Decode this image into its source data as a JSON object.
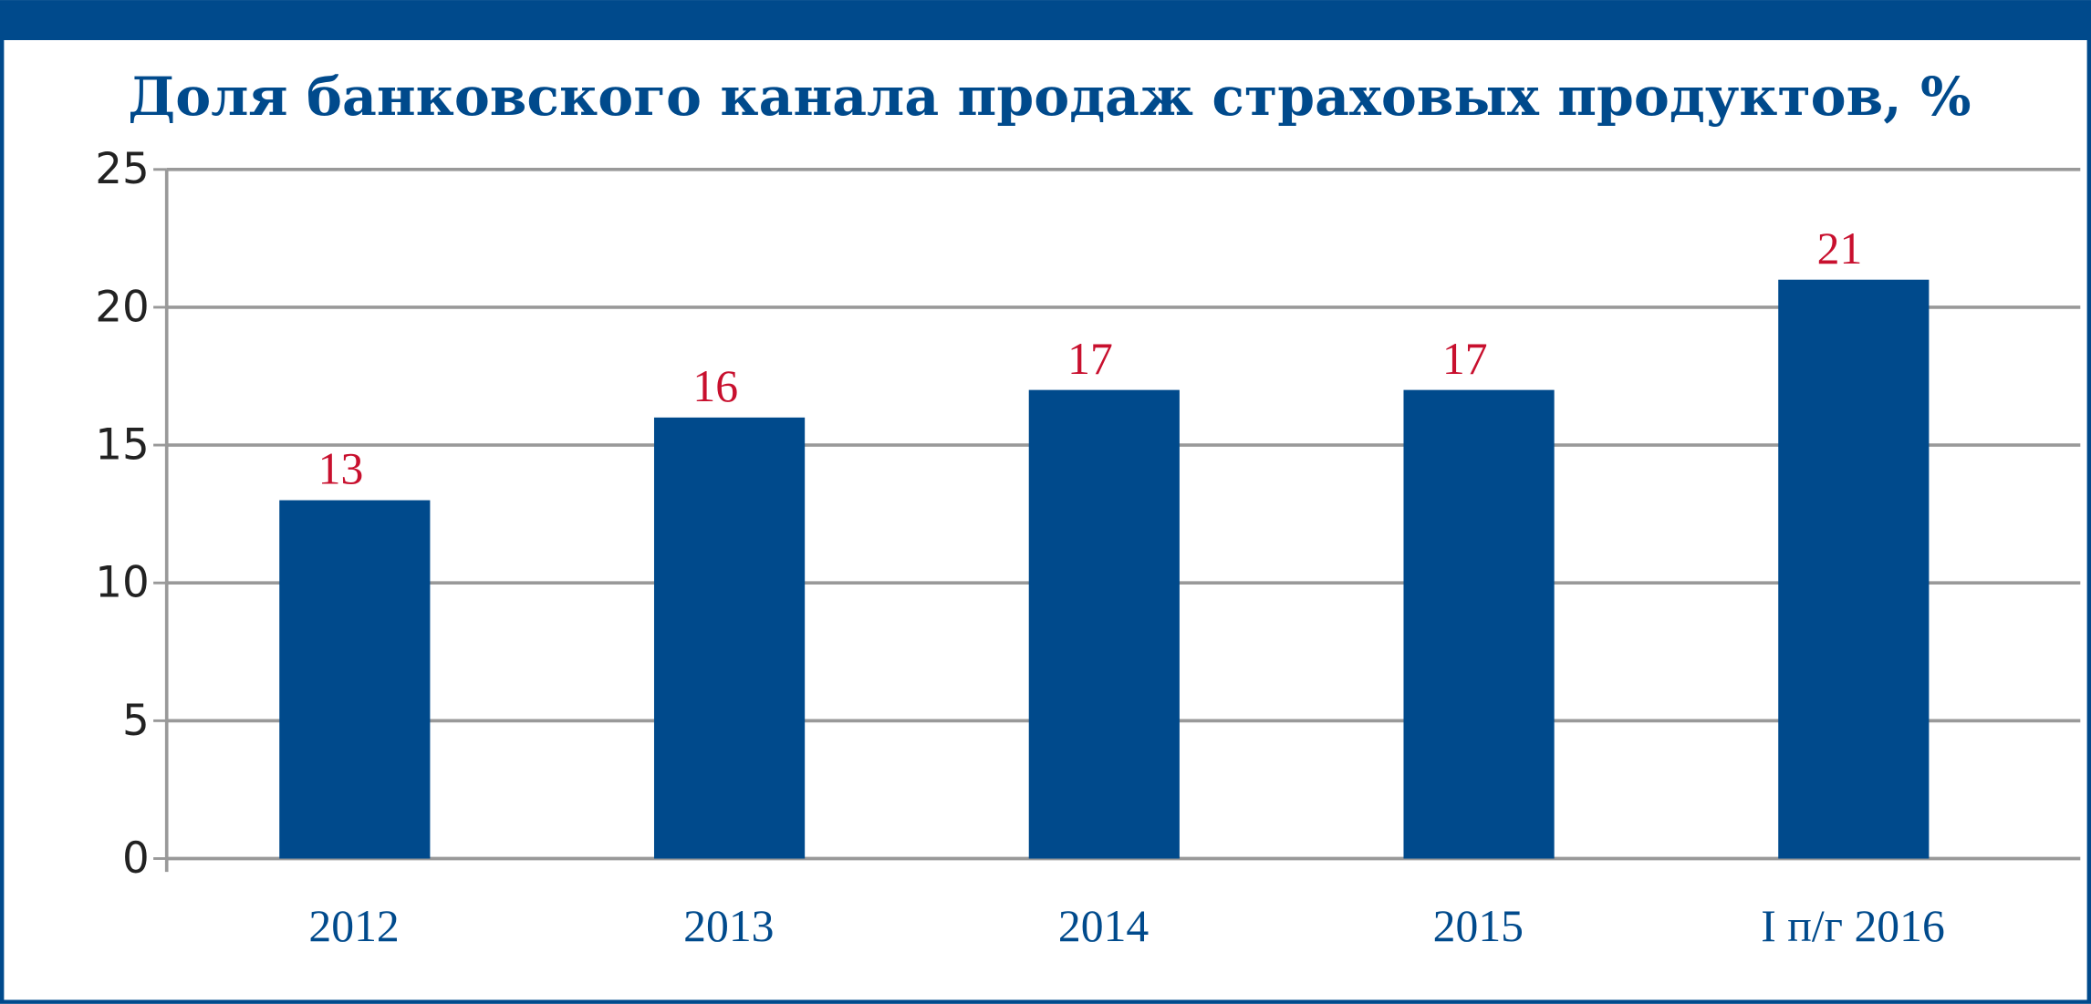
{
  "chart_data": {
    "type": "bar",
    "title": "Доля банковского канала продаж страховых продуктов, %",
    "categories": [
      "2012",
      "2013",
      "2014",
      "2015",
      "I п/г 2016"
    ],
    "values": [
      13,
      16,
      17,
      17,
      21
    ],
    "color": "#004a8c",
    "value_label_color": "#c8102e",
    "ylim": [
      0,
      25
    ],
    "yticks": [
      0,
      5,
      10,
      15,
      20,
      25
    ],
    "grid": true
  }
}
